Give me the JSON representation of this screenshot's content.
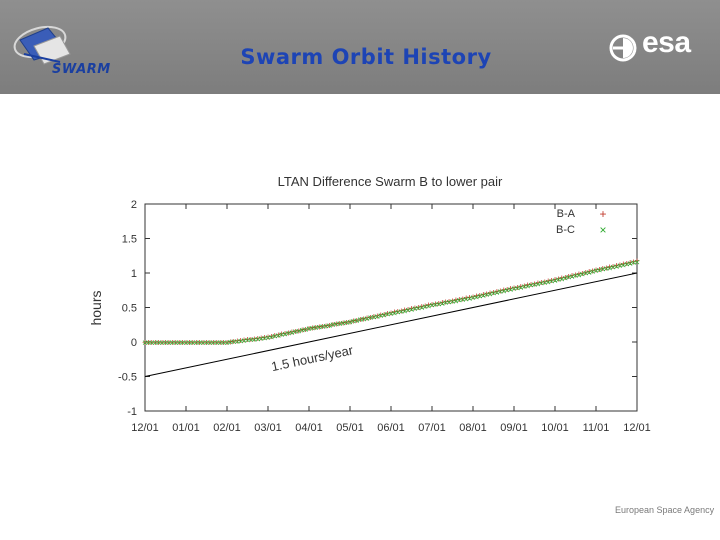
{
  "slide": {
    "title": "Swarm Orbit History",
    "swarm_logo_text": "SWARM",
    "esa_logo_text": "esa",
    "footer": "European Space Agency"
  },
  "colors": {
    "header_bg": "#858585",
    "title": "#1d44b5",
    "series_ba": "#c0392b",
    "series_bc": "#2eaa2e",
    "reference_line": "#000000"
  },
  "chart_data": {
    "type": "scatter",
    "title": "LTAN Difference Swarm B to lower pair",
    "xlabel": "",
    "ylabel": "hours",
    "categories": [
      "12/01",
      "01/01",
      "02/01",
      "03/01",
      "04/01",
      "05/01",
      "06/01",
      "07/01",
      "08/01",
      "09/01",
      "10/01",
      "11/01",
      "12/01"
    ],
    "ylim": [
      -1,
      2
    ],
    "yticks": [
      "-1",
      "-0.5",
      "0",
      "0.5",
      "1",
      "1.5",
      "2"
    ],
    "grid": false,
    "legend_position": "top-right",
    "series": [
      {
        "name": "B-A",
        "marker": "+",
        "x": [
          0,
          1,
          2,
          3,
          4,
          5,
          6,
          7,
          8,
          9,
          10,
          11,
          12
        ],
        "values": [
          0.0,
          0.0,
          0.0,
          0.08,
          0.2,
          0.3,
          0.43,
          0.55,
          0.66,
          0.79,
          0.91,
          1.05,
          1.18
        ]
      },
      {
        "name": "B-C",
        "marker": "x",
        "x": [
          0,
          1,
          2,
          3,
          4,
          5,
          6,
          7,
          8,
          9,
          10,
          11,
          12
        ],
        "values": [
          0.0,
          0.0,
          0.0,
          0.07,
          0.2,
          0.3,
          0.42,
          0.54,
          0.65,
          0.78,
          0.9,
          1.04,
          1.17
        ]
      }
    ],
    "reference_line": {
      "x": [
        0,
        12
      ],
      "values": [
        -0.5,
        1.0
      ]
    },
    "annotation": "1.5 hours/year"
  }
}
